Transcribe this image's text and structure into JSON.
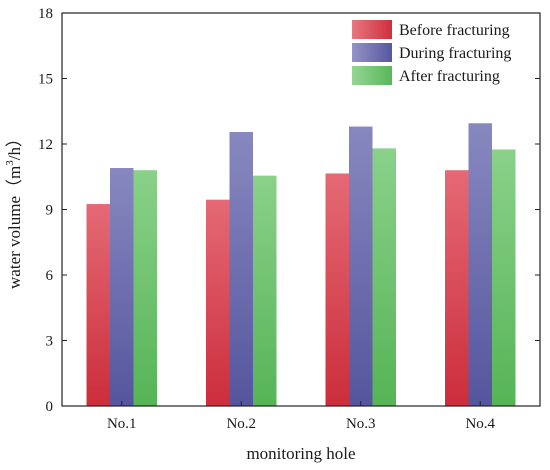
{
  "chart_data": {
    "type": "bar",
    "title": "",
    "xlabel": "monitoring hole",
    "ylabel": "water volume（m3/h）",
    "ylabel_parts": {
      "prefix": "water volume（m",
      "sup": "3",
      "suffix": "/h）"
    },
    "categories": [
      "No.1",
      "No.2",
      "No.3",
      "No.4"
    ],
    "ylim": [
      0,
      18
    ],
    "yticks": [
      0,
      3,
      6,
      9,
      12,
      15,
      18
    ],
    "grid": false,
    "legend_position": "top-right",
    "series": [
      {
        "name": "Before fracturing",
        "values": [
          9.25,
          9.45,
          10.65,
          10.8
        ],
        "color": "#d9303f"
      },
      {
        "name": "During fracturing",
        "values": [
          10.9,
          12.55,
          12.8,
          12.95
        ],
        "color": "#5a5aa8"
      },
      {
        "name": "After fracturing",
        "values": [
          10.8,
          10.55,
          11.8,
          11.75
        ],
        "color": "#5cbf5c"
      }
    ]
  }
}
